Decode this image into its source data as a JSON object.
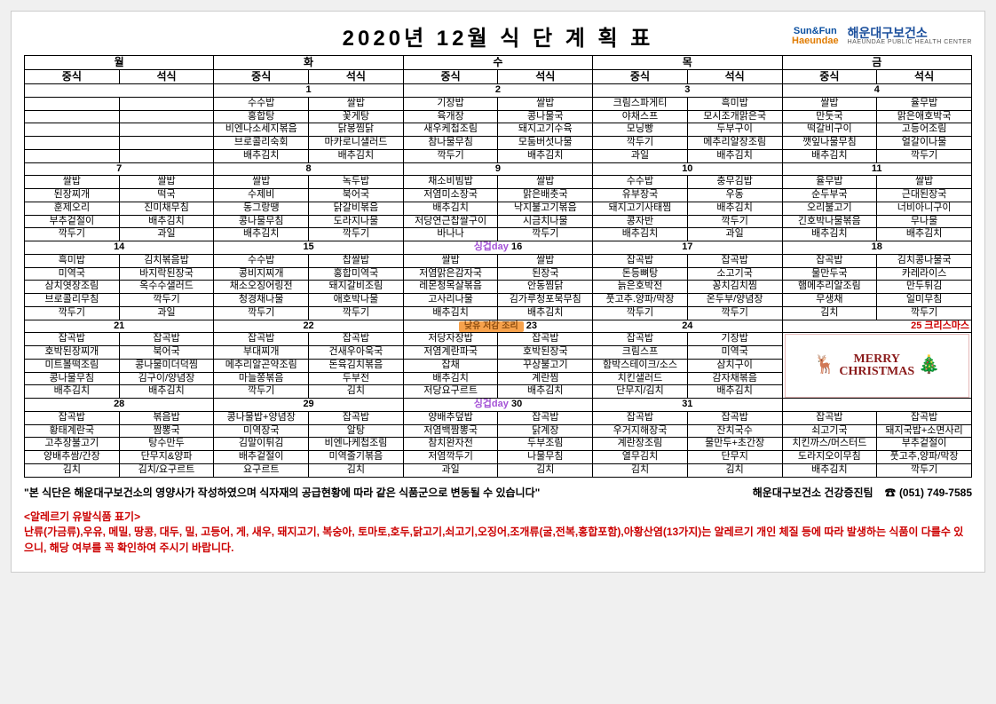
{
  "title": "2020년  12월 식 단 계 획 표",
  "logo": {
    "sunfun": "Sun&Fun",
    "haeundae": "Haeundae",
    "hc": "해운대구보건소",
    "hcsub": "HAEUNDAE PUBLIC HEALTH CENTER"
  },
  "dayHeaders": [
    "월",
    "화",
    "수",
    "목",
    "금"
  ],
  "mealHeaders": [
    "중식",
    "석식"
  ],
  "tags": {
    "orange": "낮유 저감 조리",
    "purple": "싱겁day"
  },
  "weeks": [
    {
      "dates": [
        "",
        "1",
        "2",
        "3",
        "4"
      ],
      "rows": [
        [
          "",
          "",
          "수수밥",
          "쌀밥",
          "기장밥",
          "쌀밥",
          "크림스파게티",
          "흑미밥",
          "쌀밥",
          "율무밥"
        ],
        [
          "",
          "",
          "홍합탕",
          "꽃게탕",
          "육개장",
          "콩나물국",
          "야채스프",
          "모시조개맑은국",
          "만둣국",
          "맑은애호박국"
        ],
        [
          "",
          "",
          "비엔나소세지볶음",
          "닭봉찜닭",
          "새우케첩조림",
          "돼지고기수육",
          "모닝빵",
          "두부구이",
          "떡갈비구이",
          "고등어조림"
        ],
        [
          "",
          "",
          "브로콜리숙회",
          "마카로니샐러드",
          "참나물무침",
          "모둠버섯나물",
          "깍두기",
          "메추리알장조림",
          "깻잎나물무침",
          "얼갈이나물"
        ],
        [
          "",
          "",
          "배추김치",
          "배추김치",
          "깍두기",
          "배추김치",
          "과일",
          "배추김치",
          "배추김치",
          "깍두기"
        ]
      ],
      "tagRow": [
        "",
        "",
        "",
        "",
        "_ORA",
        "",
        "",
        "",
        "",
        ""
      ]
    },
    {
      "dates": [
        "7",
        "8",
        "9",
        "10",
        "11"
      ],
      "rows": [
        [
          "쌀밥",
          "쌀밥",
          "쌀밥",
          "녹두밥",
          "채소비빔밥",
          "쌀밥",
          "수수밥",
          "충무김밥",
          "율무밥",
          "쌀밥"
        ],
        [
          "된장찌개",
          "떡국",
          "수제비",
          "북어국",
          "저염미소장국",
          "맑은배춧국",
          "유부장국",
          "우동",
          "순두부국",
          "근대된장국"
        ],
        [
          "훈제오리",
          "진미채무침",
          "동그랑땡",
          "닭갈비볶음",
          "배추김치",
          "낙지불고기볶음",
          "돼지고기사태찜",
          "배추김치",
          "오리불고기",
          "너비아니구이"
        ],
        [
          "부추겉절이",
          "배추김치",
          "콩나물무침",
          "도라지나물",
          "저당연근찹쌀구이",
          "시금치나물",
          "콩자반",
          "깍두기",
          "긴호박나물볶음",
          "무나물"
        ],
        [
          "깍두기",
          "과일",
          "배추김치",
          "깍두기",
          "바나나",
          "깍두기",
          "배추김치",
          "과일",
          "배추김치",
          "배추김치"
        ]
      ]
    },
    {
      "dates": [
        "14",
        "15",
        "16",
        "17",
        "18"
      ],
      "tagCell": {
        "col": 4,
        "type": "_PUR"
      },
      "rows": [
        [
          "흑미밥",
          "김치볶음밥",
          "수수밥",
          "찹쌀밥",
          "쌀밥",
          "쌀밥",
          "잡곡밥",
          "잡곡밥",
          "잡곡밥",
          "김치콩나물국"
        ],
        [
          "미역국",
          "바지락된장국",
          "콩비지찌개",
          "홍합미역국",
          "저염맑은감자국",
          "된장국",
          "돈등뼈탕",
          "소고기국",
          "물만두국",
          "카레라이스"
        ],
        [
          "삼치엿장조림",
          "옥수수샐러드",
          "채소오징어링전",
          "돼지갈비조림",
          "레몬청목살볶음",
          "안동찜닭",
          "늙은호박전",
          "꽁치김치찜",
          "햄메추리알조림",
          "만두튀김"
        ],
        [
          "브로콜리무침",
          "깍두기",
          "청경채나물",
          "애호박나물",
          "고사리나물",
          "김가루청포묵무침",
          "풋고추.양파/막장",
          "온두부/양념장",
          "무생채",
          "일미무침"
        ],
        [
          "깍두기",
          "과일",
          "깍두기",
          "깍두기",
          "배추김치",
          "배추김치",
          "깍두기",
          "깍두기",
          "김치",
          "깍두기"
        ]
      ]
    },
    {
      "dates": [
        "21",
        "22",
        "23",
        "24",
        "25 크리스마스"
      ],
      "tagCell": {
        "col": 4,
        "type": "_ORA"
      },
      "christmasCol": 9,
      "rows": [
        [
          "잡곡밥",
          "잡곡밥",
          "잡곡밥",
          "잡곡밥",
          "저당자장밥",
          "잡곡밥",
          "잡곡밥",
          "기장밥",
          "",
          ""
        ],
        [
          "호박된장찌개",
          "북어국",
          "부대찌개",
          "건새우아욱국",
          "저염계란파국",
          "호박된장국",
          "크림스프",
          "미역국",
          "",
          ""
        ],
        [
          "미트볼떡조림",
          "콩나물미더덕찜",
          "메추리알곤약조림",
          "돈육김치볶음",
          "잡채",
          "꾸상불고기",
          "함박스테이크/소스",
          "삼치구이",
          "",
          ""
        ],
        [
          "콩나물무침",
          "김구이/양념장",
          "마늘쫑볶음",
          "두부전",
          "배추김치",
          "계란찜",
          "치킨샐러드",
          "감자채볶음",
          "",
          ""
        ],
        [
          "배추김치",
          "배추김치",
          "깍두기",
          "김치",
          "저당요구르트",
          "배추김치",
          "단무지/김치",
          "배추김치",
          "",
          ""
        ]
      ]
    },
    {
      "dates": [
        "28",
        "29",
        "30",
        "31",
        ""
      ],
      "tagCell": {
        "col": 4,
        "type": "_PUR"
      },
      "rows": [
        [
          "잡곡밥",
          "볶음밥",
          "콩나물밥+양념장",
          "잡곡밥",
          "양배추덮밥",
          "잡곡밥",
          "잡곡밥",
          "잡곡밥",
          "잡곡밥",
          "잡곡밥"
        ],
        [
          "황태계란국",
          "짬뽕국",
          "미역장국",
          "알탕",
          "저염백짬뽕국",
          "닭계장",
          "우거지해장국",
          "잔치국수",
          "쇠고기국",
          "돼지국밥+소면사리"
        ],
        [
          "고추장불고기",
          "탕수만두",
          "김말이튀김",
          "비엔나케첩조림",
          "참치완자전",
          "두부조림",
          "계란장조림",
          "물만두+초간장",
          "치킨까스/머스터드",
          "부추겉절이"
        ],
        [
          "양배추쌈/간장",
          "단무지&양파",
          "배추겉절이",
          "미역줄기볶음",
          "저염깍두기",
          "나물무침",
          "열무김치",
          "단무지",
          "도라지오이무침",
          "풋고추,양파/막장"
        ],
        [
          "김치",
          "김치/요구르트",
          "요구르트",
          "김치",
          "과일",
          "김치",
          "김치",
          "김치",
          "배추김치",
          "깍두기"
        ]
      ]
    }
  ],
  "footer": {
    "note": "\"본 식단은 해운대구보건소의 영양사가 작성하였으며 식자재의 공급현황에 따라 같은 식품군으로 변동될 수 있습니다\"",
    "team": "해운대구보건소 건강증진팀",
    "phone": "(051) 749-7585",
    "allergyTitle": "<알레르기 유발식품 표기>",
    "allergyText": "난류(가금류),우유, 메밀, 땅콩, 대두, 밀, 고등어, 게, 새우, 돼지고기, 복숭아, 토마토,호두,닭고기,쇠고기,오징어,조개류(굴,전복,홍합포함),아황산염(13가지)는 알레르기 개인 체질 등에 따라 발생하는 식품이 다를수 있으니, 해당 여부를 꼭 확인하여 주시기 바랍니다."
  },
  "merry": {
    "line1": "MERRY",
    "line2": "CHRISTMAS"
  }
}
